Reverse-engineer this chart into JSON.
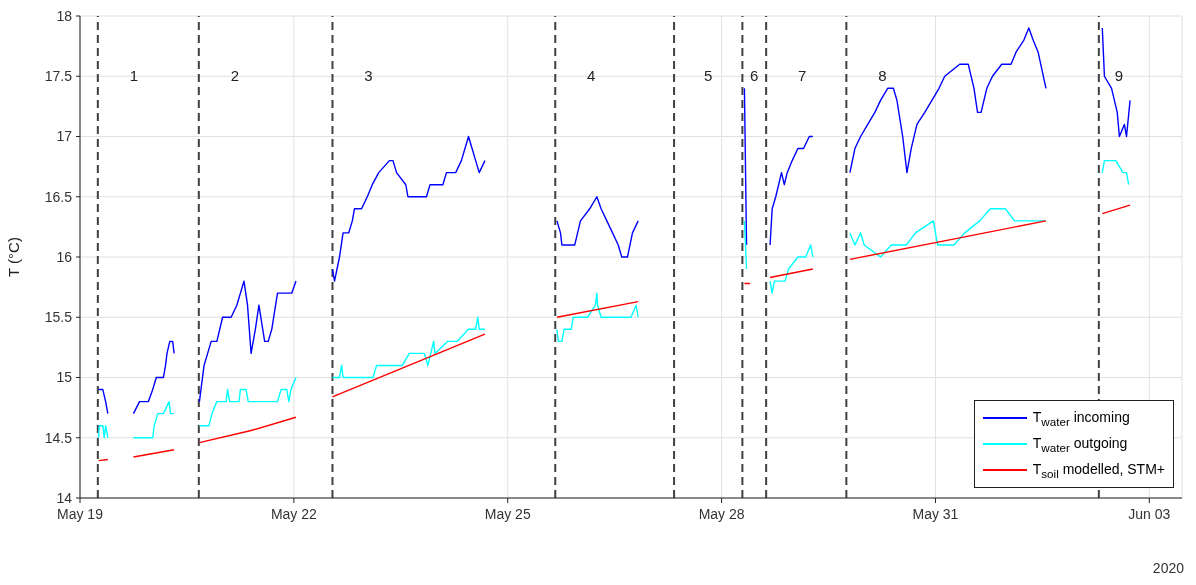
{
  "chart_data": {
    "type": "line",
    "ylabel": "T (°C)",
    "xlim": [
      "2020-05-19T00:00",
      "2020-06-03T11:00"
    ],
    "xticks": [
      {
        "value": "2020-05-19",
        "label": "May 19"
      },
      {
        "value": "2020-05-22",
        "label": "May 22"
      },
      {
        "value": "2020-05-25",
        "label": "May 25"
      },
      {
        "value": "2020-05-28",
        "label": "May 28"
      },
      {
        "value": "2020-05-31",
        "label": "May 31"
      },
      {
        "value": "2020-06-03",
        "label": "Jun 03"
      }
    ],
    "ylim": [
      14,
      18
    ],
    "yticks": [
      14,
      14.5,
      15,
      15.5,
      16,
      16.5,
      17,
      17.5,
      18
    ],
    "grid": true,
    "legend": "bottom right",
    "line_style": "solid",
    "marker": "none",
    "series": [
      {
        "name": "T$_{water}$ incoming",
        "color": "#0000ff",
        "x": [
          "2020-05-19T06:14",
          "2020-05-19T07:41",
          "2020-05-19T08:38",
          "2020-05-19T09:22",
          "2020-05-19T12:00",
          "2020-05-19T18:00",
          "2020-05-19T20:02",
          "2020-05-19T23:02",
          "2020-05-20T00:29",
          "2020-05-20T01:41",
          "2020-05-20T04:05",
          "2020-05-20T04:48",
          "2020-05-20T05:17",
          "2020-05-20T06:14",
          "2020-05-20T07:12",
          "2020-05-20T07:41",
          "2020-05-20T12:00",
          "2020-05-20T16:12",
          "2020-05-20T17:46",
          "2020-05-20T18:58",
          "2020-05-20T20:10",
          "2020-05-20T22:05",
          "2020-05-21T00:00",
          "2020-05-21T02:53",
          "2020-05-21T04:48",
          "2020-05-21T07:12",
          "2020-05-21T08:24",
          "2020-05-21T09:36",
          "2020-05-21T11:02",
          "2020-05-21T12:14",
          "2020-05-21T14:10",
          "2020-05-21T15:22",
          "2020-05-21T16:34",
          "2020-05-21T18:29",
          "2020-05-21T23:17",
          "2020-05-22T00:43",
          "2020-05-22T07:12",
          "2020-05-22T12:58",
          "2020-05-22T13:41",
          "2020-05-22T15:22",
          "2020-05-22T16:34",
          "2020-05-22T18:29",
          "2020-05-22T19:41",
          "2020-05-22T20:24",
          "2020-05-22T22:48",
          "2020-05-23T00:43",
          "2020-05-23T02:24",
          "2020-05-23T04:34",
          "2020-05-23T08:10",
          "2020-05-23T09:22",
          "2020-05-23T10:34",
          "2020-05-23T13:41",
          "2020-05-23T14:24",
          "2020-05-23T20:38",
          "2020-05-23T21:50",
          "2020-05-24T02:10",
          "2020-05-24T03:22",
          "2020-05-24T06:29",
          "2020-05-24T08:24",
          "2020-05-24T10:48",
          "2020-05-24T12:00",
          "2020-05-24T13:12",
          "2020-05-24T14:24",
          "2020-05-24T16:19",
          "2020-05-25T04:48",
          "2020-05-25T16:34",
          "2020-05-25T17:46",
          "2020-05-25T18:14",
          "2020-05-25T22:34",
          "2020-05-26T00:29",
          "2020-05-26T03:36",
          "2020-05-26T06:00",
          "2020-05-26T07:26",
          "2020-05-26T09:22",
          "2020-05-26T11:17",
          "2020-05-26T13:12",
          "2020-05-26T14:24",
          "2020-05-26T16:19",
          "2020-05-26T18:00",
          "2020-05-26T19:55",
          "2020-05-27T12:00",
          "2020-05-28T07:41",
          "2020-05-28T08:24",
          "2020-05-28T12:00",
          "2020-05-28T16:19",
          "2020-05-28T17:02",
          "2020-05-28T18:14",
          "2020-05-28T20:10",
          "2020-05-28T21:07",
          "2020-05-28T22:05",
          "2020-05-28T23:46",
          "2020-05-29T01:41",
          "2020-05-29T03:36",
          "2020-05-29T05:31",
          "2020-05-29T06:43",
          "2020-05-29T12:00",
          "2020-05-29T19:12",
          "2020-05-29T20:53",
          "2020-05-29T22:48",
          "2020-05-30T01:12",
          "2020-05-30T03:36",
          "2020-05-30T05:31",
          "2020-05-30T07:55",
          "2020-05-30T09:50",
          "2020-05-30T11:02",
          "2020-05-30T12:58",
          "2020-05-30T14:24",
          "2020-05-30T15:50",
          "2020-05-30T17:46",
          "2020-05-30T20:24",
          "2020-05-30T22:48",
          "2020-05-31T01:12",
          "2020-05-31T03:07",
          "2020-05-31T08:10",
          "2020-05-31T11:02",
          "2020-05-31T12:58",
          "2020-05-31T14:10",
          "2020-05-31T15:22",
          "2020-05-31T17:17",
          "2020-05-31T19:12",
          "2020-05-31T22:19",
          "2020-06-01T01:26",
          "2020-06-01T03:07",
          "2020-06-01T05:46",
          "2020-06-01T07:26",
          "2020-06-01T08:53",
          "2020-06-01T10:34",
          "2020-06-01T13:12",
          "2020-06-02T00:00",
          "2020-06-02T08:10",
          "2020-06-02T08:53",
          "2020-06-02T11:17",
          "2020-06-02T13:12",
          "2020-06-02T13:55",
          "2020-06-02T15:36",
          "2020-06-02T16:19",
          "2020-06-02T17:31"
        ],
        "values": [
          14.9,
          14.9,
          14.8,
          14.7,
          null,
          14.7,
          14.8,
          14.8,
          14.9,
          15.0,
          15.0,
          15.1,
          15.2,
          15.3,
          15.3,
          15.2,
          null,
          14.8,
          15.1,
          15.2,
          15.3,
          15.3,
          15.5,
          15.5,
          15.6,
          15.8,
          15.6,
          15.2,
          15.4,
          15.6,
          15.3,
          15.3,
          15.4,
          15.7,
          15.7,
          15.8,
          null,
          15.9,
          15.8,
          16.0,
          16.2,
          16.2,
          16.3,
          16.4,
          16.4,
          16.5,
          16.6,
          16.7,
          16.8,
          16.8,
          16.7,
          16.6,
          16.5,
          16.5,
          16.6,
          16.6,
          16.7,
          16.7,
          16.8,
          17.0,
          16.9,
          16.8,
          16.7,
          16.8,
          null,
          16.3,
          16.2,
          16.1,
          16.1,
          16.3,
          16.4,
          16.5,
          16.4,
          16.3,
          16.2,
          16.1,
          16.0,
          16.0,
          16.2,
          16.3,
          null,
          17.4,
          16.1,
          null,
          16.1,
          16.4,
          16.5,
          16.7,
          16.6,
          16.7,
          16.8,
          16.9,
          16.9,
          17.0,
          17.0,
          null,
          16.7,
          16.9,
          17.0,
          17.1,
          17.2,
          17.3,
          17.4,
          17.4,
          17.3,
          17.0,
          16.7,
          16.9,
          17.1,
          17.2,
          17.3,
          17.4,
          17.5,
          17.6,
          17.6,
          17.4,
          17.2,
          17.2,
          17.4,
          17.5,
          17.6,
          17.6,
          17.7,
          17.8,
          17.9,
          17.8,
          17.7,
          17.4,
          null,
          17.9,
          17.5,
          17.4,
          17.2,
          17.0,
          17.1,
          17.0,
          17.3
        ]
      },
      {
        "name": "T$_{water}$ outgoing",
        "color": "#00ffff",
        "x": [
          "2020-05-19T06:14",
          "2020-05-19T06:29",
          "2020-05-19T07:41",
          "2020-05-19T08:10",
          "2020-05-19T08:38",
          "2020-05-19T09:22",
          "2020-05-19T12:00",
          "2020-05-19T18:00",
          "2020-05-20T00:29",
          "2020-05-20T00:58",
          "2020-05-20T02:10",
          "2020-05-20T04:05",
          "2020-05-20T06:00",
          "2020-05-20T06:29",
          "2020-05-20T07:41",
          "2020-05-20T12:00",
          "2020-05-20T16:12",
          "2020-05-20T19:26",
          "2020-05-20T20:24",
          "2020-05-20T22:05",
          "2020-05-21T01:12",
          "2020-05-21T01:41",
          "2020-05-21T02:24",
          "2020-05-21T05:31",
          "2020-05-21T06:00",
          "2020-05-21T07:55",
          "2020-05-21T08:38",
          "2020-05-21T18:29",
          "2020-05-21T19:41",
          "2020-05-21T21:36",
          "2020-05-21T22:19",
          "2020-05-21T23:02",
          "2020-05-22T00:43",
          "2020-05-22T07:12",
          "2020-05-22T12:58",
          "2020-05-22T15:22",
          "2020-05-22T16:05",
          "2020-05-22T16:34",
          "2020-05-23T02:38",
          "2020-05-23T03:50",
          "2020-05-23T12:29",
          "2020-05-23T14:53",
          "2020-05-23T19:55",
          "2020-05-23T21:07",
          "2020-05-23T23:02",
          "2020-05-23T23:31",
          "2020-05-24T03:50",
          "2020-05-24T06:58",
          "2020-05-24T10:48",
          "2020-05-24T13:12",
          "2020-05-24T13:55",
          "2020-05-24T14:24",
          "2020-05-24T16:19",
          "2020-05-25T04:48",
          "2020-05-25T16:34",
          "2020-05-25T17:02",
          "2020-05-25T18:14",
          "2020-05-25T18:58",
          "2020-05-25T21:22",
          "2020-05-25T22:05",
          "2020-05-26T02:53",
          "2020-05-26T05:31",
          "2020-05-26T06:00",
          "2020-05-26T06:14",
          "2020-05-26T07:26",
          "2020-05-26T11:17",
          "2020-05-26T17:31",
          "2020-05-26T19:12",
          "2020-05-26T19:55",
          "2020-05-27T12:00",
          "2020-05-28T07:41",
          "2020-05-28T08:24",
          "2020-05-28T12:00",
          "2020-05-28T16:19",
          "2020-05-28T17:02",
          "2020-05-28T17:46",
          "2020-05-28T21:22",
          "2020-05-28T22:34",
          "2020-05-29T01:41",
          "2020-05-29T04:19",
          "2020-05-29T06:00",
          "2020-05-29T06:43",
          "2020-05-29T12:00",
          "2020-05-29T19:12",
          "2020-05-29T20:53",
          "2020-05-29T22:48",
          "2020-05-30T00:00",
          "2020-05-30T05:31",
          "2020-05-30T09:07",
          "2020-05-30T14:10",
          "2020-05-30T17:17",
          "2020-05-30T23:17",
          "2020-05-31T00:43",
          "2020-05-31T06:14",
          "2020-05-31T09:50",
          "2020-05-31T14:53",
          "2020-05-31T18:29",
          "2020-05-31T23:31",
          "2020-06-01T02:38",
          "2020-06-01T13:12",
          "2020-06-02T00:00",
          "2020-06-02T08:10",
          "2020-06-02T08:53",
          "2020-06-02T12:43",
          "2020-06-02T15:07",
          "2020-06-02T16:19",
          "2020-06-02T17:02"
        ],
        "values": [
          14.5,
          14.6,
          14.6,
          14.5,
          14.6,
          14.5,
          null,
          14.5,
          14.5,
          14.6,
          14.7,
          14.7,
          14.8,
          14.7,
          14.7,
          null,
          14.6,
          14.6,
          14.7,
          14.8,
          14.8,
          14.9,
          14.8,
          14.8,
          14.9,
          14.9,
          14.8,
          14.8,
          14.9,
          14.9,
          14.8,
          14.9,
          15.0,
          null,
          15.0,
          15.0,
          15.1,
          15.0,
          15.0,
          15.1,
          15.1,
          15.2,
          15.2,
          15.1,
          15.3,
          15.2,
          15.3,
          15.3,
          15.4,
          15.4,
          15.5,
          15.4,
          15.4,
          null,
          15.4,
          15.3,
          15.3,
          15.4,
          15.4,
          15.5,
          15.5,
          15.6,
          15.7,
          15.6,
          15.5,
          15.5,
          15.5,
          15.6,
          15.5,
          null,
          16.3,
          15.9,
          null,
          15.8,
          15.7,
          15.8,
          15.8,
          15.9,
          16.0,
          16.0,
          16.1,
          16.0,
          null,
          16.2,
          16.1,
          16.2,
          16.1,
          16.0,
          16.1,
          16.1,
          16.2,
          16.3,
          16.1,
          16.1,
          16.2,
          16.3,
          16.4,
          16.4,
          16.3,
          16.3,
          null,
          16.7,
          16.8,
          16.8,
          16.7,
          16.7,
          16.6
        ]
      },
      {
        "name": "T$_{soil}$ modelled, STM+",
        "color": "#ff0000",
        "x": [
          "2020-05-19T06:14",
          "2020-05-19T09:22",
          "2020-05-19T12:00",
          "2020-05-19T18:00",
          "2020-05-20T07:41",
          "2020-05-20T12:00",
          "2020-05-20T16:12",
          "2020-05-21T09:36",
          "2020-05-22T00:43",
          "2020-05-22T07:12",
          "2020-05-22T12:58",
          "2020-05-24T16:19",
          "2020-05-25T04:48",
          "2020-05-25T16:34",
          "2020-05-26T19:55",
          "2020-05-27T12:00",
          "2020-05-28T07:41",
          "2020-05-28T09:36",
          "2020-05-28T12:00",
          "2020-05-28T16:19",
          "2020-05-29T06:43",
          "2020-05-29T12:00",
          "2020-05-29T19:12",
          "2020-06-01T13:12",
          "2020-06-02T00:00",
          "2020-06-02T08:10",
          "2020-06-02T17:31"
        ],
        "values": [
          14.31,
          14.32,
          null,
          14.34,
          14.4,
          null,
          14.46,
          14.56,
          14.67,
          null,
          14.84,
          15.36,
          null,
          15.5,
          15.63,
          null,
          15.78,
          15.78,
          null,
          15.83,
          15.9,
          null,
          15.98,
          16.3,
          null,
          16.36,
          16.43
        ]
      }
    ],
    "ref_lines": [
      {
        "axis": "x",
        "value": "2020-05-19T06:00",
        "color": "#404040",
        "line_style": "dashed"
      },
      {
        "axis": "x",
        "value": "2020-05-20T16:00",
        "color": "#404040",
        "line_style": "dashed"
      },
      {
        "axis": "x",
        "value": "2020-05-22T13:00",
        "color": "#404040",
        "line_style": "dashed"
      },
      {
        "axis": "x",
        "value": "2020-05-25T16:00",
        "color": "#404040",
        "line_style": "dashed"
      },
      {
        "axis": "x",
        "value": "2020-05-27T08:00",
        "color": "#404040",
        "line_style": "dashed"
      },
      {
        "axis": "x",
        "value": "2020-05-28T07:00",
        "color": "#404040",
        "line_style": "dashed"
      },
      {
        "axis": "x",
        "value": "2020-05-28T15:00",
        "color": "#404040",
        "line_style": "dashed"
      },
      {
        "axis": "x",
        "value": "2020-05-29T18:00",
        "color": "#404040",
        "line_style": "dashed"
      },
      {
        "axis": "x",
        "value": "2020-06-02T07:00",
        "color": "#404040",
        "line_style": "dashed"
      }
    ],
    "annotations": [
      "1",
      "2",
      "3",
      "4",
      "5",
      "6",
      "7",
      "8",
      "9",
      "2020"
    ]
  }
}
